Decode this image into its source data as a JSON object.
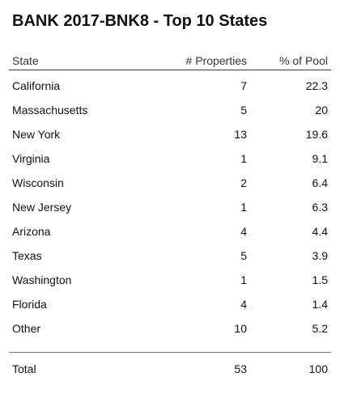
{
  "title": "BANK 2017-BNK8 - Top 10 States",
  "columns": {
    "state": "State",
    "properties": "# Properties",
    "pool": "% of Pool"
  },
  "rows": [
    {
      "state": "California",
      "properties": "7",
      "pool": "22.3"
    },
    {
      "state": "Massachusetts",
      "properties": "5",
      "pool": "20"
    },
    {
      "state": "New York",
      "properties": "13",
      "pool": "19.6"
    },
    {
      "state": "Virginia",
      "properties": "1",
      "pool": "9.1"
    },
    {
      "state": "Wisconsin",
      "properties": "2",
      "pool": "6.4"
    },
    {
      "state": "New Jersey",
      "properties": "1",
      "pool": "6.3"
    },
    {
      "state": "Arizona",
      "properties": "4",
      "pool": "4.4"
    },
    {
      "state": "Texas",
      "properties": "5",
      "pool": "3.9"
    },
    {
      "state": "Washington",
      "properties": "1",
      "pool": "1.5"
    },
    {
      "state": "Florida",
      "properties": "4",
      "pool": "1.4"
    },
    {
      "state": "Other",
      "properties": "10",
      "pool": "5.2"
    }
  ],
  "total": {
    "label": "Total",
    "properties": "53",
    "pool": "100"
  }
}
